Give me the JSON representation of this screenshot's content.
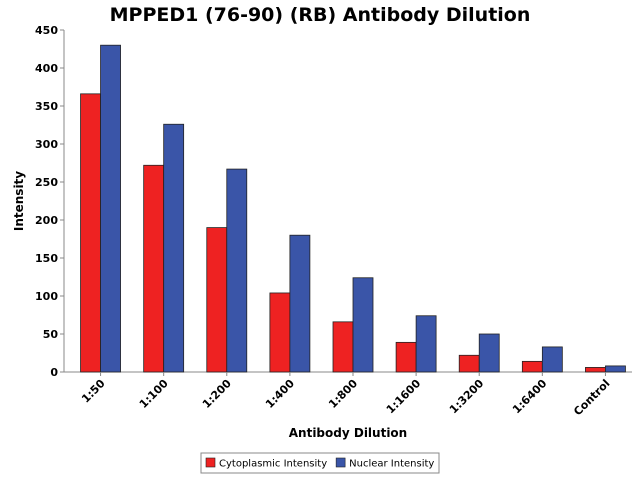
{
  "chart_data": {
    "type": "bar",
    "title": "MPPED1 (76-90) (RB) Antibody Dilution",
    "xlabel": "Antibody Dilution",
    "ylabel": "Intensity",
    "ylim": [
      0,
      450
    ],
    "yticks": [
      0,
      50,
      100,
      150,
      200,
      250,
      300,
      350,
      400,
      450
    ],
    "categories": [
      "1:50",
      "1:100",
      "1:200",
      "1:400",
      "1:800",
      "1:1600",
      "1:3200",
      "1:6400",
      "Control"
    ],
    "series": [
      {
        "name": "Cytoplasmic Intensity",
        "color": "#ee2222",
        "values": [
          366,
          272,
          190,
          104,
          66,
          39,
          22,
          14,
          6
        ]
      },
      {
        "name": "Nuclear Intensity",
        "color": "#3a55a8",
        "values": [
          430,
          326,
          267,
          180,
          124,
          74,
          50,
          33,
          8
        ]
      }
    ],
    "grid": false,
    "legend_position": "bottom"
  }
}
